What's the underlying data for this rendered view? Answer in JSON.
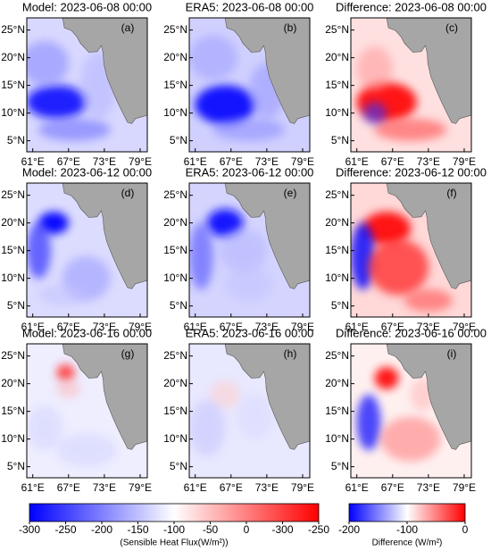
{
  "panels": [
    {
      "title": "Model: 2023-06-08 00:00",
      "label": "(a)"
    },
    {
      "title": "ERA5: 2023-06-08 00:00",
      "label": "(b)"
    },
    {
      "title": "Difference: 2023-06-08 00:00",
      "label": "(c)"
    },
    {
      "title": "Model: 2023-06-12 00:00",
      "label": "(d)"
    },
    {
      "title": "ERA5: 2023-06-12 00:00",
      "label": "(e)"
    },
    {
      "title": "Difference: 2023-06-12 00:00",
      "label": "(f)"
    },
    {
      "title": "Model: 2023-06-16 00:00",
      "label": "(g)"
    },
    {
      "title": "ERA5: 2023-06-16 00:00",
      "label": "(h)"
    },
    {
      "title": "Difference: 2023-06-16 00:00",
      "label": "(i)"
    }
  ],
  "lat_ticks": [
    {
      "value": 25,
      "label": "25°N"
    },
    {
      "value": 20,
      "label": "20°N"
    },
    {
      "value": 15,
      "label": "15°N"
    },
    {
      "value": 10,
      "label": "10°N"
    },
    {
      "value": 5,
      "label": "5°N"
    }
  ],
  "lon_ticks": [
    {
      "value": 61,
      "label": "61°E"
    },
    {
      "value": 67,
      "label": "67°E"
    },
    {
      "value": 73,
      "label": "73°E"
    },
    {
      "value": 79,
      "label": "79°E"
    }
  ],
  "colorbars": [
    {
      "ticks": [
        "-300",
        "-250",
        "-200",
        "-150",
        "-100",
        "-50",
        "0",
        "-300",
        "-250"
      ],
      "label": "(Sensible Heat Flux(W/m²))"
    },
    {
      "ticks": [
        "-200",
        "-100",
        "0"
      ],
      "label": "Difference (W/m²)"
    }
  ]
}
